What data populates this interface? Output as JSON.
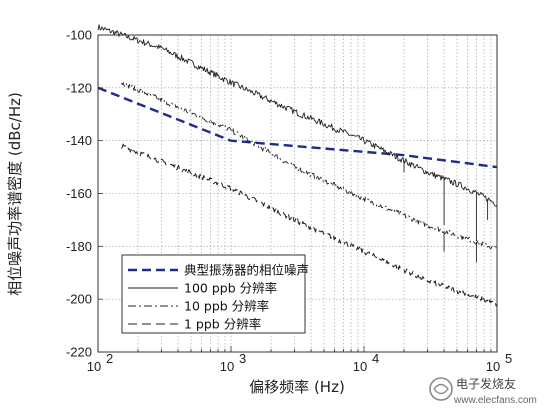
{
  "chart_data": {
    "type": "line",
    "xscale": "log",
    "xlim": [
      100,
      100000
    ],
    "ylim": [
      -220,
      -100
    ],
    "grid": true,
    "legend_position": "bottom-left",
    "xlabel": "偏移频率 (Hz)",
    "ylabel": "相位噪声功率谱密度 (dBc/Hz)",
    "x_ticks": [
      {
        "value": 100,
        "base": "10",
        "exp": "2"
      },
      {
        "value": 1000,
        "base": "10",
        "exp": "3"
      },
      {
        "value": 10000,
        "base": "10",
        "exp": "4"
      },
      {
        "value": 100000,
        "base": "10",
        "exp": "5"
      }
    ],
    "y_ticks": [
      -100,
      -120,
      -140,
      -160,
      -180,
      -200,
      -220
    ],
    "series": [
      {
        "name": "典型振荡器的相位噪声",
        "style": "thick-dashed",
        "color": "#1f2a8c",
        "x": [
          100,
          1000,
          20000,
          100000
        ],
        "y": [
          -120,
          -140,
          -145.5,
          -150
        ]
      },
      {
        "name": "100 ppb 分辨率",
        "style": "solid",
        "color": "#222222",
        "x": [
          100,
          300,
          1000,
          3000,
          10000,
          30000,
          60000,
          100000
        ],
        "y": [
          -97,
          -105,
          -118,
          -129,
          -140,
          -152,
          -158,
          -164
        ],
        "noise": 1.2,
        "spikes": [
          {
            "x": 20000,
            "y": -152
          },
          {
            "x": 40000,
            "y": -172
          },
          {
            "x": 70000,
            "y": -178
          },
          {
            "x": 85000,
            "y": -170
          }
        ]
      },
      {
        "name": "10 ppb 分辨率",
        "style": "dash-dot",
        "color": "#222222",
        "x": [
          150,
          1000,
          3000,
          10000,
          30000,
          100000
        ],
        "y": [
          -118,
          -136,
          -150,
          -162,
          -172,
          -181
        ],
        "noise": 1.0,
        "spikes": [
          {
            "x": 40000,
            "y": -182
          },
          {
            "x": 70000,
            "y": -186
          }
        ]
      },
      {
        "name": "1 ppb 分辨率",
        "style": "dashed",
        "color": "#222222",
        "x": [
          150,
          1000,
          3000,
          10000,
          30000,
          100000
        ],
        "y": [
          -142,
          -158,
          -170,
          -182,
          -193,
          -202
        ],
        "noise": 1.0,
        "spikes": []
      }
    ]
  },
  "watermark": {
    "text": "电子发烧友",
    "url": "www.elecfans.com"
  }
}
